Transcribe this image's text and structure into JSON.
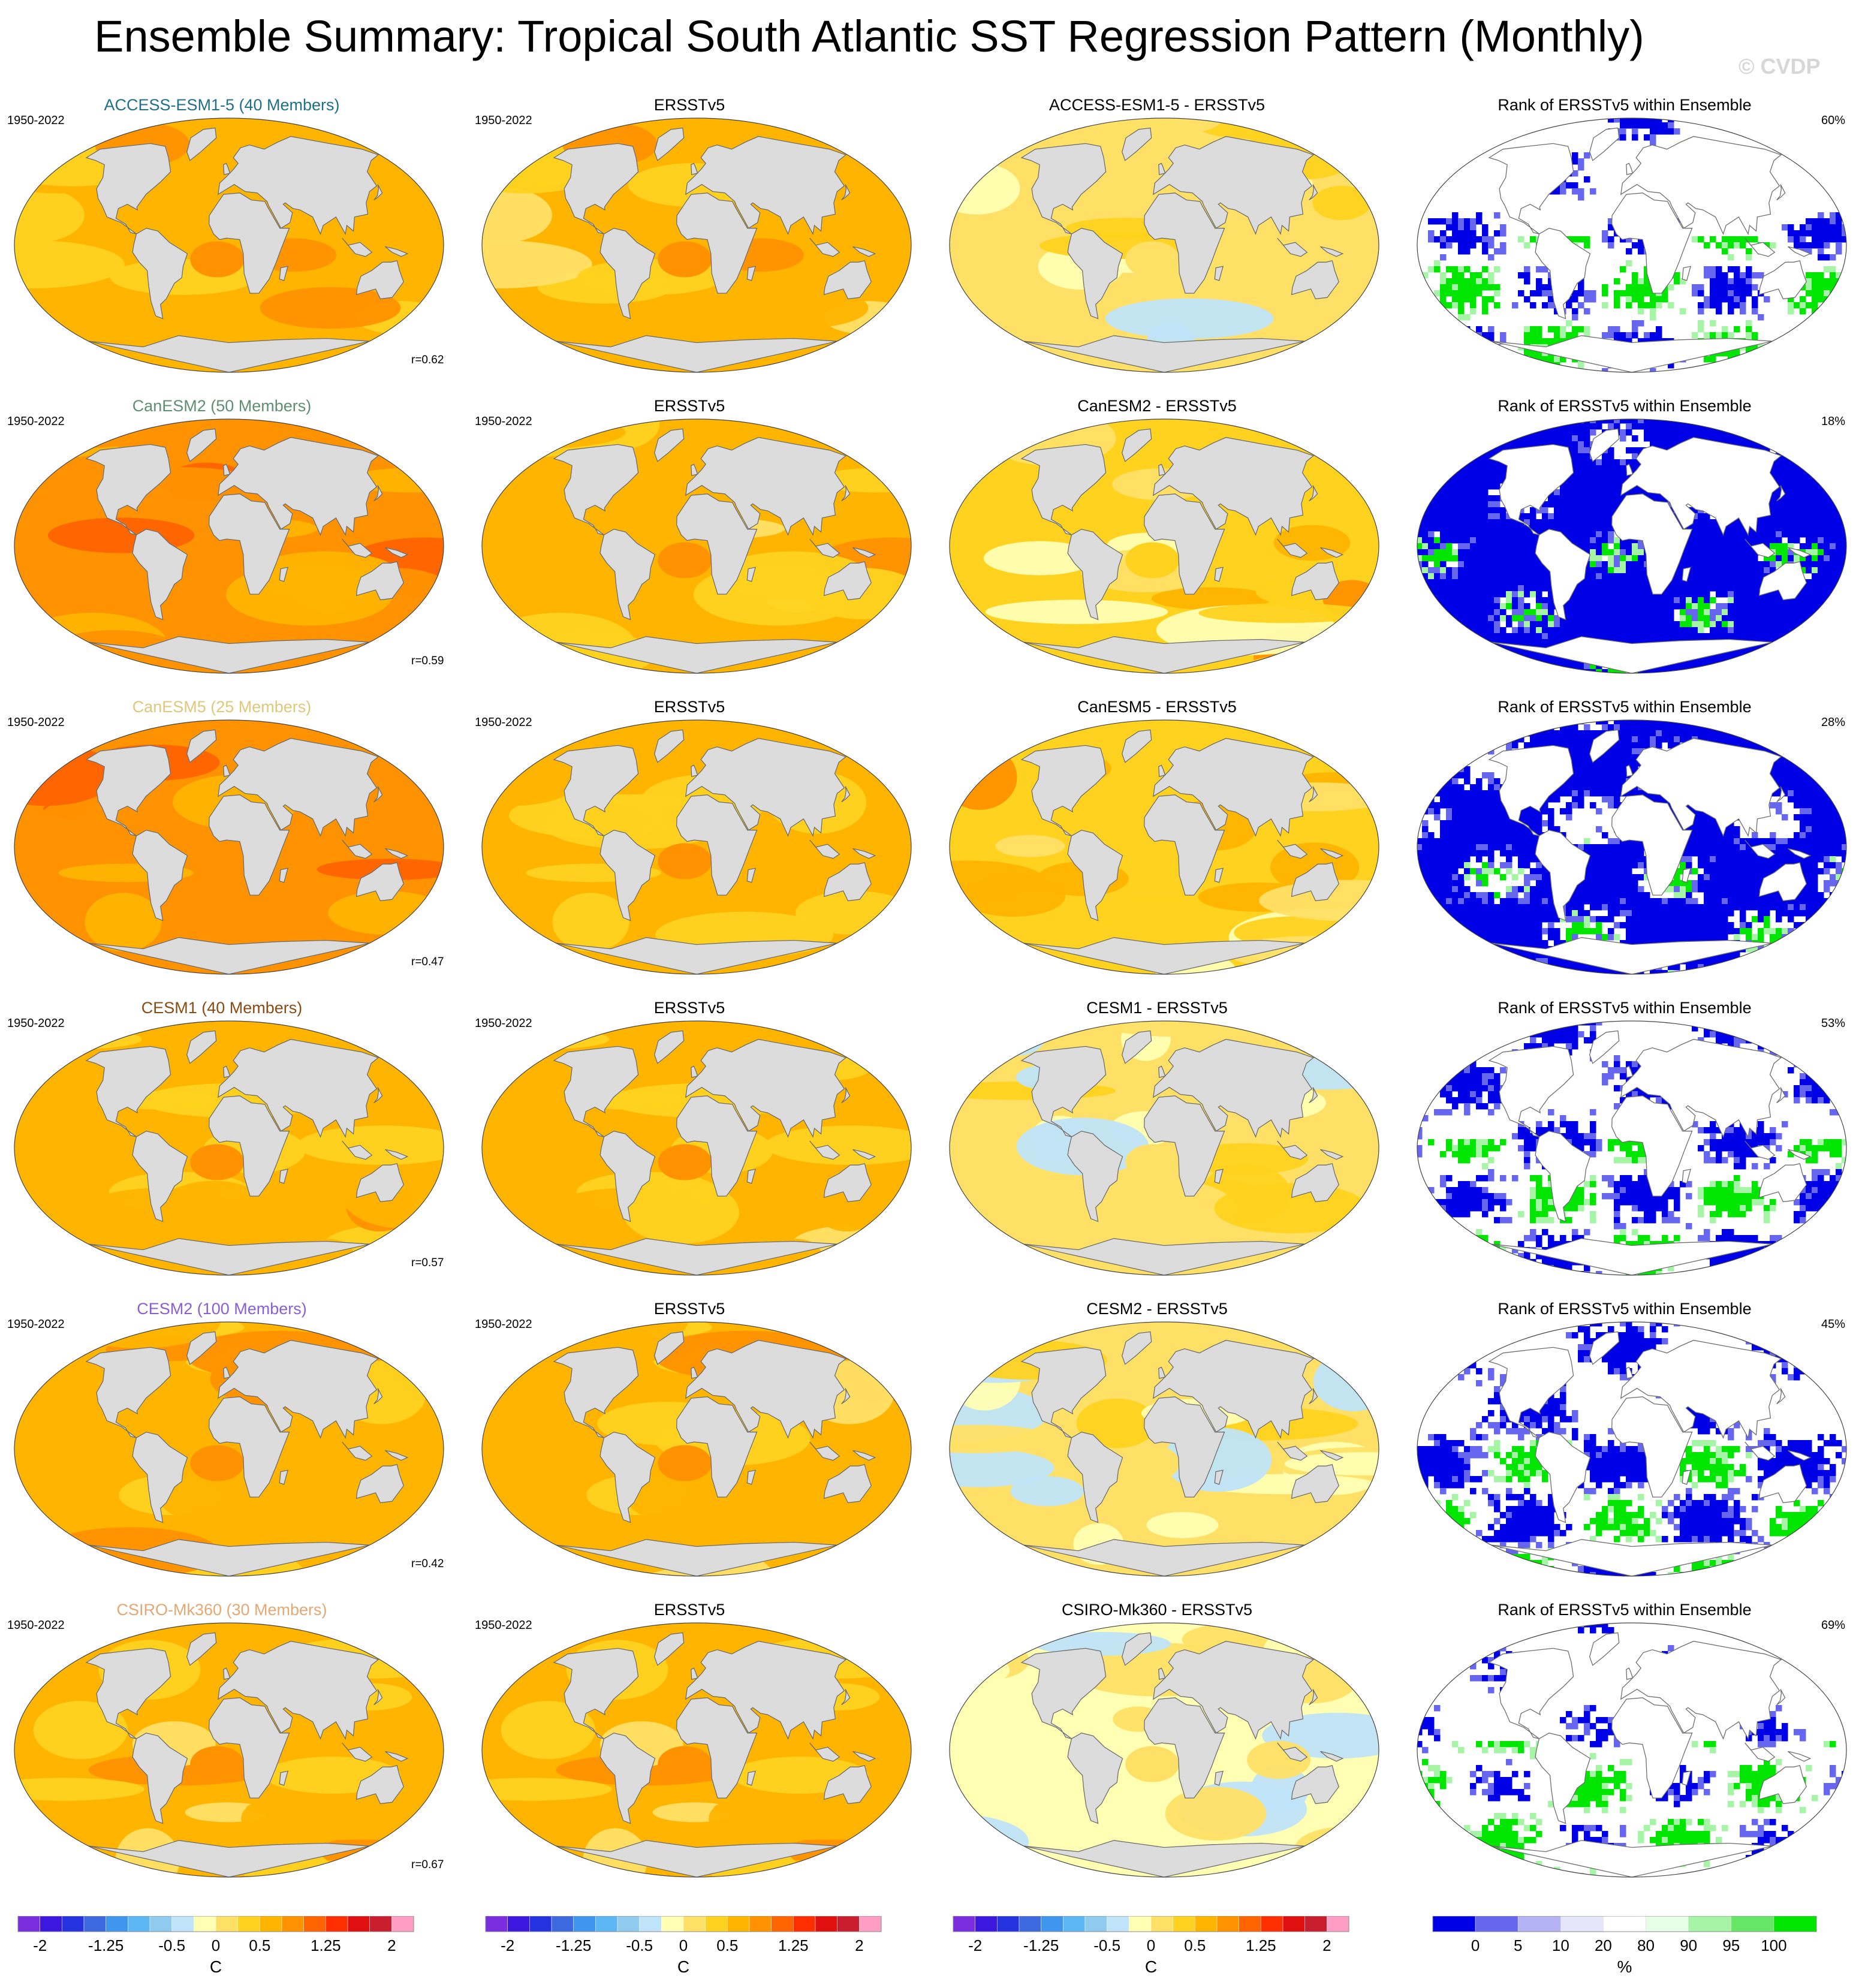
{
  "title": "Ensemble Summary: Tropical South Atlantic SST Regression Pattern (Monthly)",
  "watermark": "© CVDP",
  "colors": {
    "land": "#dcdcdc",
    "coast": "#6e6e6e",
    "sst_scale": [
      "#7b2ee0",
      "#3b17e0",
      "#2432e0",
      "#3e6ae0",
      "#3f96ee",
      "#5eb7f5",
      "#8fcbee",
      "#bfe3f8",
      "#ffffb3",
      "#ffe066",
      "#ffd21f",
      "#ffb400",
      "#ff9200",
      "#ff6400",
      "#ff2f00",
      "#e01010",
      "#c81e2e",
      "#ff9ec4"
    ],
    "rank_scale": [
      "#0000e6",
      "#6666ee",
      "#b3b3f5",
      "#e6e6fb",
      "#ffffff",
      "#e6ffe6",
      "#a6f5a6",
      "#66e666",
      "#00e600"
    ]
  },
  "chart_data": {
    "type": "map-grid",
    "rows": [
      {
        "model": "ACCESS-ESM1-5 (40 Members)",
        "model_color": "#1f6f8b",
        "years": "1950-2022",
        "r": "r=0.62",
        "obs_title": "ERSSTv5",
        "obs_years": "1950-2022",
        "diff_title": "ACCESS-ESM1-5 - ERSSTv5",
        "rank_title": "Rank of ERSSTv5 within Ensemble",
        "rank_pct": "60%",
        "ens_level": 0.6,
        "diff_level": 0.05,
        "rank_blue": 0.16,
        "rank_green": 0.18
      },
      {
        "model": "CanESM2 (50 Members)",
        "model_color": "#5f8f73",
        "years": "1950-2022",
        "r": "r=0.59",
        "obs_title": "ERSSTv5",
        "obs_years": "1950-2022",
        "diff_title": "CanESM2 - ERSSTv5",
        "rank_title": "Rank of ERSSTv5 within Ensemble",
        "rank_pct": "18%",
        "ens_level": 0.8,
        "diff_level": 0.35,
        "rank_blue": 0.72,
        "rank_green": 0.01
      },
      {
        "model": "CanESM5 (25 Members)",
        "model_color": "#e0c77a",
        "years": "1950-2022",
        "r": "r=0.47",
        "obs_title": "ERSSTv5",
        "obs_years": "1950-2022",
        "diff_title": "CanESM5 - ERSSTv5",
        "rank_title": "Rank of ERSSTv5 within Ensemble",
        "rank_pct": "28%",
        "ens_level": 0.85,
        "diff_level": 0.35,
        "rank_blue": 0.62,
        "rank_green": 0.02
      },
      {
        "model": "CESM1 (40 Members)",
        "model_color": "#8a4b14",
        "years": "1950-2022",
        "r": "r=0.57",
        "obs_title": "ERSSTv5",
        "obs_years": "1950-2022",
        "diff_title": "CESM1 - ERSSTv5",
        "rank_title": "Rank of ERSSTv5 within Ensemble",
        "rank_pct": "53%",
        "ens_level": 0.55,
        "diff_level": 0.0,
        "rank_blue": 0.22,
        "rank_green": 0.16
      },
      {
        "model": "CESM2 (100 Members)",
        "model_color": "#8a5fd0",
        "years": "1950-2022",
        "r": "r=0.42",
        "obs_title": "ERSSTv5",
        "obs_years": "1950-2022",
        "diff_title": "CESM2 - ERSSTv5",
        "rank_title": "Rank of ERSSTv5 within Ensemble",
        "rank_pct": "45%",
        "ens_level": 0.6,
        "diff_level": 0.0,
        "rank_blue": 0.28,
        "rank_green": 0.16
      },
      {
        "model": "CSIRO-Mk360 (30 Members)",
        "model_color": "#e3a874",
        "years": "1950-2022",
        "r": "r=0.67",
        "obs_title": "ERSSTv5",
        "obs_years": "1950-2022",
        "diff_title": "CSIRO-Mk360 - ERSSTv5",
        "rank_title": "Rank of ERSSTv5 within Ensemble",
        "rank_pct": "69%",
        "ens_level": 0.5,
        "diff_level": -0.1,
        "rank_blue": 0.08,
        "rank_green": 0.2
      }
    ],
    "sst_colorbar": {
      "ticks": [
        "-2",
        "-1.25",
        "-0.5",
        "0",
        "0.5",
        "1.25",
        "2"
      ],
      "unit": "C"
    },
    "rank_colorbar": {
      "ticks": [
        "0",
        "5",
        "10",
        "20",
        "80",
        "90",
        "95",
        "100"
      ],
      "unit": "%"
    }
  }
}
